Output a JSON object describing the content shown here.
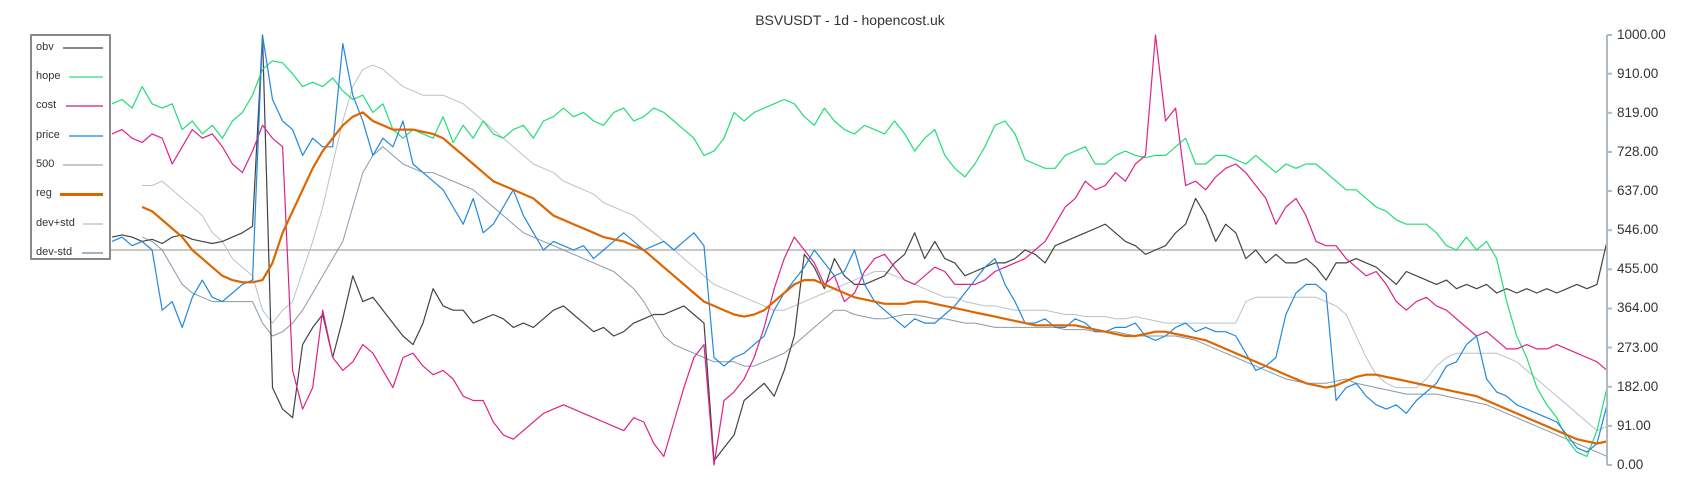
{
  "chart_data": {
    "type": "line",
    "title": "BSVUSDT - 1d - hopencost.uk",
    "xlabel": "",
    "ylabel": "",
    "ylim": [
      0,
      1000
    ],
    "yaxis_position": "right",
    "y_ticks": [
      "1000.00",
      "910.00",
      "819.00",
      "728.00",
      "637.00",
      "546.00",
      "455.00",
      "364.00",
      "273.00",
      "182.00",
      "91.00",
      "0.00"
    ],
    "grid": false,
    "legend_position": "top-left",
    "reference_line": {
      "name": "500",
      "value": 500,
      "color": "#c8c8c8"
    },
    "n_points": 150,
    "series": [
      {
        "name": "obv",
        "color": "#444444",
        "width": 1.2,
        "values": [
          530,
          535,
          530,
          520,
          525,
          515,
          530,
          535,
          525,
          520,
          515,
          520,
          530,
          540,
          555,
          1000,
          180,
          130,
          110,
          280,
          320,
          350,
          250,
          340,
          440,
          380,
          390,
          360,
          330,
          300,
          280,
          330,
          410,
          370,
          360,
          360,
          330,
          340,
          350,
          340,
          320,
          330,
          320,
          340,
          360,
          370,
          350,
          330,
          310,
          320,
          300,
          310,
          330,
          340,
          350,
          350,
          360,
          370,
          350,
          330,
          10,
          40,
          70,
          150,
          170,
          190,
          160,
          220,
          300,
          490,
          460,
          410,
          480,
          440,
          420,
          420,
          430,
          440,
          470,
          490,
          540,
          480,
          520,
          480,
          470,
          440,
          450,
          460,
          470,
          470,
          480,
          500,
          490,
          470,
          510,
          520,
          530,
          540,
          550,
          560,
          540,
          520,
          510,
          490,
          500,
          510,
          540,
          560,
          620,
          580,
          520,
          560,
          540,
          480,
          500,
          470,
          490,
          470,
          470,
          480,
          460,
          430,
          470,
          470,
          480,
          470,
          460,
          440,
          420,
          450,
          440,
          430,
          420,
          430,
          410,
          420,
          410,
          420,
          400,
          410,
          400,
          410,
          400,
          410,
          400,
          410,
          420,
          410,
          420,
          520
        ]
      },
      {
        "name": "hope",
        "color": "#22dd77",
        "width": 1.2,
        "values": [
          840,
          850,
          830,
          880,
          840,
          830,
          840,
          780,
          800,
          770,
          790,
          760,
          800,
          820,
          860,
          920,
          940,
          935,
          910,
          880,
          890,
          880,
          900,
          870,
          850,
          860,
          820,
          840,
          780,
          760,
          780,
          770,
          760,
          810,
          750,
          790,
          760,
          800,
          770,
          760,
          780,
          790,
          760,
          800,
          810,
          830,
          810,
          820,
          800,
          790,
          820,
          830,
          800,
          810,
          830,
          820,
          800,
          780,
          760,
          720,
          730,
          760,
          820,
          800,
          820,
          830,
          840,
          850,
          840,
          810,
          790,
          830,
          800,
          780,
          770,
          790,
          780,
          770,
          800,
          770,
          730,
          760,
          780,
          720,
          690,
          670,
          700,
          740,
          790,
          800,
          770,
          710,
          700,
          690,
          690,
          720,
          730,
          740,
          700,
          700,
          720,
          730,
          720,
          715,
          720,
          720,
          740,
          760,
          700,
          700,
          720,
          720,
          710,
          700,
          720,
          700,
          680,
          700,
          690,
          700,
          700,
          680,
          660,
          640,
          640,
          620,
          600,
          590,
          570,
          560,
          560,
          560,
          540,
          510,
          500,
          530,
          500,
          520,
          480,
          380,
          300,
          250,
          180,
          140,
          110,
          60,
          30,
          20,
          80,
          180
        ]
      },
      {
        "name": "cost",
        "color": "#dd2288",
        "width": 1.2,
        "values": [
          770,
          780,
          760,
          750,
          770,
          760,
          700,
          740,
          780,
          760,
          770,
          740,
          700,
          680,
          730,
          790,
          760,
          740,
          220,
          130,
          180,
          360,
          250,
          220,
          240,
          280,
          260,
          220,
          180,
          250,
          260,
          230,
          210,
          220,
          200,
          160,
          150,
          150,
          100,
          70,
          60,
          80,
          100,
          120,
          130,
          140,
          130,
          120,
          110,
          100,
          90,
          80,
          110,
          100,
          50,
          20,
          100,
          180,
          250,
          280,
          0,
          150,
          170,
          200,
          250,
          320,
          410,
          480,
          530,
          500,
          470,
          420,
          440,
          380,
          400,
          450,
          480,
          490,
          460,
          430,
          420,
          440,
          460,
          450,
          420,
          420,
          420,
          430,
          450,
          460,
          470,
          480,
          500,
          520,
          560,
          600,
          620,
          660,
          640,
          650,
          680,
          660,
          700,
          720,
          1000,
          800,
          830,
          650,
          660,
          640,
          670,
          690,
          700,
          680,
          650,
          620,
          560,
          600,
          620,
          580,
          520,
          510,
          510,
          480,
          460,
          440,
          450,
          420,
          380,
          360,
          380,
          390,
          370,
          360,
          340,
          320,
          300,
          310,
          290,
          270,
          270,
          280,
          270,
          270,
          280,
          270,
          260,
          250,
          240,
          220
        ]
      },
      {
        "name": "price",
        "color": "#2288dd",
        "width": 1.2,
        "values": [
          520,
          530,
          510,
          520,
          500,
          360,
          380,
          320,
          390,
          430,
          390,
          380,
          400,
          420,
          430,
          1000,
          850,
          800,
          780,
          720,
          760,
          740,
          740,
          980,
          860,
          800,
          720,
          760,
          740,
          800,
          700,
          680,
          660,
          640,
          600,
          560,
          620,
          540,
          560,
          600,
          640,
          580,
          540,
          500,
          520,
          510,
          500,
          510,
          480,
          500,
          520,
          540,
          520,
          500,
          510,
          520,
          500,
          520,
          540,
          510,
          250,
          230,
          250,
          260,
          280,
          300,
          360,
          400,
          430,
          460,
          500,
          470,
          440,
          450,
          500,
          420,
          380,
          360,
          340,
          320,
          340,
          330,
          330,
          350,
          370,
          400,
          430,
          460,
          480,
          420,
          380,
          330,
          330,
          340,
          320,
          320,
          340,
          330,
          310,
          310,
          320,
          320,
          330,
          300,
          290,
          300,
          320,
          330,
          310,
          320,
          310,
          310,
          300,
          260,
          220,
          230,
          250,
          350,
          400,
          420,
          420,
          400,
          150,
          180,
          190,
          160,
          140,
          130,
          140,
          120,
          150,
          170,
          190,
          230,
          240,
          280,
          300,
          200,
          170,
          160,
          140,
          130,
          120,
          110,
          100,
          70,
          40,
          30,
          50,
          140
        ]
      },
      {
        "name": "dev+std",
        "color": "#b8c2cc",
        "width": 1.0,
        "values": [
          null,
          null,
          null,
          650,
          650,
          660,
          640,
          620,
          600,
          580,
          540,
          520,
          480,
          460,
          440,
          360,
          330,
          360,
          380,
          450,
          520,
          600,
          700,
          800,
          880,
          920,
          930,
          920,
          900,
          880,
          870,
          860,
          860,
          860,
          850,
          840,
          820,
          800,
          780,
          760,
          740,
          720,
          700,
          690,
          680,
          660,
          650,
          640,
          630,
          610,
          600,
          590,
          580,
          560,
          540,
          520,
          500,
          480,
          460,
          440,
          420,
          410,
          400,
          390,
          380,
          370,
          360,
          360,
          370,
          380,
          390,
          400,
          410,
          420,
          430,
          440,
          450,
          450,
          440,
          430,
          420,
          410,
          400,
          390,
          390,
          380,
          375,
          370,
          370,
          365,
          360,
          360,
          360,
          360,
          355,
          350,
          350,
          345,
          345,
          345,
          340,
          340,
          345,
          340,
          335,
          330,
          330,
          330,
          330,
          330,
          330,
          330,
          330,
          380,
          390,
          390,
          390,
          390,
          390,
          390,
          390,
          380,
          370,
          350,
          300,
          250,
          210,
          190,
          180,
          180,
          180,
          200,
          230,
          250,
          260,
          260,
          260,
          260,
          260,
          250,
          240,
          220,
          200,
          180,
          160,
          140,
          120,
          100,
          80,
          90
        ]
      },
      {
        "name": "dev-std",
        "color": "#8899aa",
        "width": 1.0,
        "values": [
          null,
          null,
          null,
          530,
          520,
          500,
          460,
          420,
          400,
          390,
          380,
          380,
          380,
          380,
          380,
          330,
          300,
          310,
          330,
          360,
          400,
          440,
          480,
          520,
          600,
          680,
          720,
          740,
          720,
          700,
          690,
          680,
          680,
          670,
          660,
          650,
          640,
          620,
          600,
          580,
          560,
          540,
          530,
          520,
          510,
          500,
          490,
          480,
          470,
          460,
          450,
          430,
          410,
          380,
          340,
          300,
          280,
          270,
          260,
          250,
          240,
          240,
          240,
          230,
          230,
          240,
          250,
          260,
          280,
          300,
          320,
          340,
          360,
          360,
          350,
          345,
          340,
          340,
          345,
          350,
          350,
          345,
          340,
          340,
          335,
          330,
          330,
          325,
          320,
          320,
          320,
          320,
          320,
          320,
          320,
          315,
          315,
          315,
          310,
          310,
          310,
          305,
          300,
          300,
          300,
          300,
          300,
          295,
          290,
          280,
          270,
          260,
          250,
          240,
          230,
          220,
          210,
          200,
          195,
          190,
          190,
          190,
          195,
          200,
          190,
          185,
          180,
          175,
          170,
          165,
          165,
          165,
          165,
          160,
          155,
          150,
          145,
          140,
          130,
          120,
          110,
          100,
          90,
          80,
          70,
          60,
          50,
          40,
          30,
          20
        ]
      },
      {
        "name": "reg",
        "color": "#dd6600",
        "width": 2.2,
        "values": [
          null,
          null,
          null,
          600,
          590,
          570,
          550,
          530,
          500,
          480,
          460,
          440,
          430,
          425,
          425,
          430,
          470,
          540,
          590,
          640,
          690,
          730,
          760,
          790,
          810,
          820,
          800,
          790,
          780,
          780,
          780,
          775,
          770,
          760,
          740,
          720,
          700,
          680,
          660,
          650,
          640,
          630,
          620,
          600,
          580,
          570,
          560,
          550,
          540,
          530,
          525,
          520,
          510,
          500,
          480,
          460,
          440,
          420,
          400,
          380,
          370,
          360,
          350,
          345,
          350,
          360,
          380,
          400,
          420,
          430,
          430,
          420,
          410,
          400,
          390,
          385,
          380,
          375,
          375,
          375,
          380,
          380,
          375,
          370,
          365,
          360,
          355,
          350,
          345,
          340,
          335,
          330,
          325,
          325,
          325,
          325,
          325,
          320,
          315,
          310,
          305,
          300,
          300,
          305,
          310,
          310,
          305,
          300,
          295,
          290,
          280,
          270,
          260,
          250,
          240,
          230,
          220,
          210,
          200,
          190,
          185,
          180,
          185,
          195,
          205,
          210,
          210,
          205,
          200,
          195,
          190,
          185,
          180,
          175,
          170,
          165,
          160,
          150,
          140,
          130,
          120,
          110,
          100,
          90,
          80,
          70,
          60,
          55,
          50,
          55
        ]
      }
    ]
  }
}
